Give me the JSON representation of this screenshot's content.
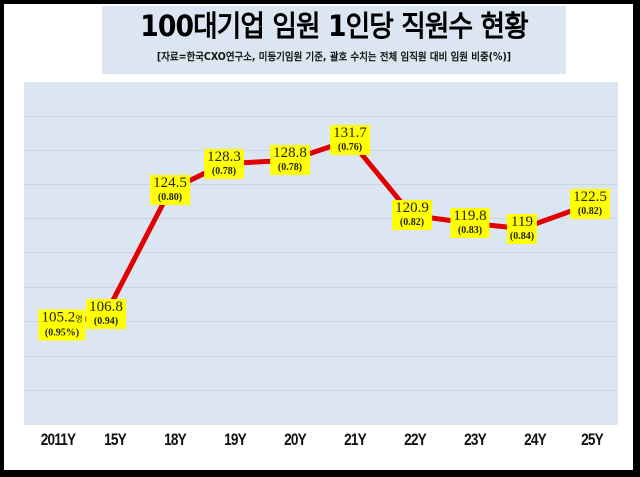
{
  "title": "100대기업 임원 1인당 직원수 현황",
  "subtitle": "[자료=한국CXO연구소, 미등기임원 기준, 괄호 수치는 전체 임직원 대비 임원 비중(%)]",
  "colors": {
    "line": "#e00000",
    "label_bg": "#ffff00",
    "plot_bg": "#dce6f2",
    "frame": "#000000"
  },
  "chart_data": {
    "type": "line",
    "title": "100대기업 임원 1인당 직원수 현황",
    "subtitle": "[자료=한국CXO연구소, 미등기임원 기준, 괄호 수치는 전체 임직원 대비 임원 비중(%)]",
    "xlabel": "",
    "ylabel": "",
    "categories": [
      "2011Y",
      "15Y",
      "18Y",
      "19Y",
      "20Y",
      "21Y",
      "22Y",
      "23Y",
      "24Y",
      "25Y"
    ],
    "series": [
      {
        "name": "임원 1인당 직원수(명)",
        "values": [
          105.2,
          106.8,
          124.5,
          128.3,
          128.8,
          131.7,
          120.9,
          119.8,
          119,
          122.5
        ]
      },
      {
        "name": "전체 임직원 대비 임원 비중(%)",
        "values": [
          0.95,
          0.94,
          0.8,
          0.78,
          0.78,
          0.76,
          0.82,
          0.83,
          0.84,
          0.82
        ]
      }
    ],
    "value_labels": [
      "105.2",
      "106.8",
      "124.5",
      "128.3",
      "128.8",
      "131.7",
      "120.9",
      "119.8",
      "119",
      "122.5"
    ],
    "pct_labels": [
      "(0.95%)",
      "(0.94)",
      "(0.80)",
      "(0.78)",
      "(0.78)",
      "(0.76)",
      "(0.82)",
      "(0.83)",
      "(0.84)",
      "(0.82)"
    ],
    "first_unit": "명",
    "grid": true,
    "legend": "none"
  }
}
